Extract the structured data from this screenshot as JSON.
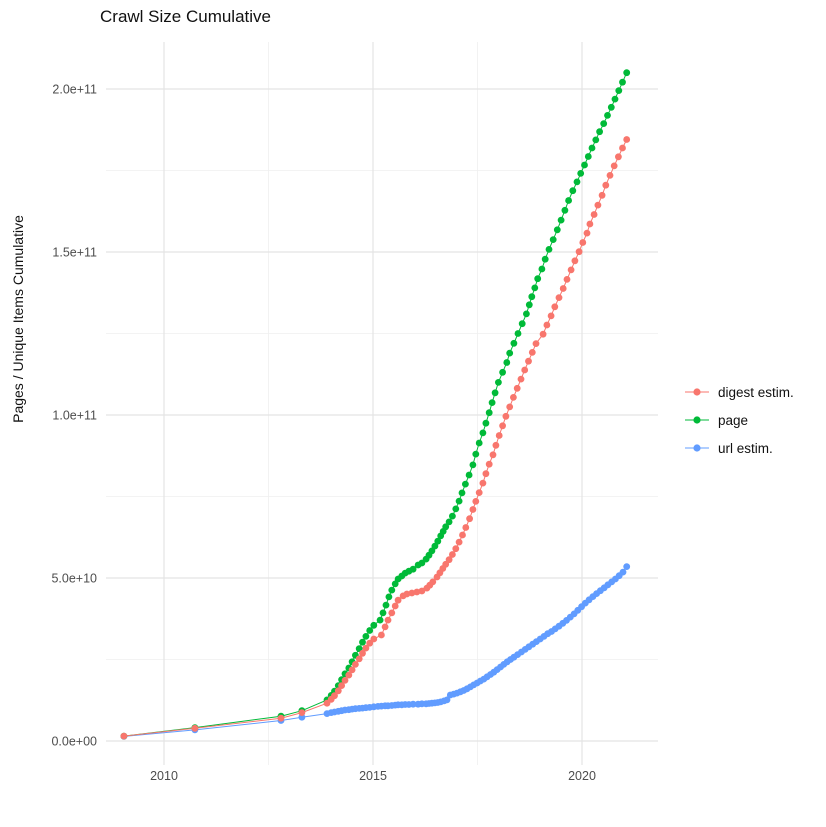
{
  "title": "Crawl Size Cumulative",
  "y_axis": {
    "label": "Pages / Unique Items Cumulative",
    "ticks": [
      "0.0e+00",
      "5.0e+10",
      "1.0e+11",
      "1.5e+11",
      "2.0e+11"
    ],
    "tick_values_e9": [
      0,
      50,
      100,
      150,
      200
    ]
  },
  "x_axis": {
    "ticks": [
      "2010",
      "2015",
      "2020"
    ],
    "tick_years": [
      2010,
      2015,
      2020
    ],
    "minor_years": [
      2012.5,
      2017.5
    ]
  },
  "legend": {
    "items": [
      {
        "label": "digest estim.",
        "color": "#F8766D"
      },
      {
        "label": "page",
        "color": "#00BA38"
      },
      {
        "label": "url estim.",
        "color": "#619CFF"
      }
    ]
  },
  "colors": {
    "grid_major": "#E4E4E4",
    "grid_minor": "#EFEFEF",
    "axis_text": "#4D4D4D",
    "title_text": "#111111"
  },
  "chart_data": {
    "type": "line",
    "marker": "point",
    "title": "Crawl Size Cumulative",
    "xlabel": "",
    "ylabel": "Pages / Unique Items Cumulative",
    "x_unit": "year (decimal)",
    "y_unit": "count",
    "y_scale": 1000000000.0,
    "xlim": [
      2008.6,
      2021.9
    ],
    "ylim_e9": [
      -7,
      215
    ],
    "grid": true,
    "legend_position": "right",
    "series": [
      {
        "name": "digest estim.",
        "color": "#F8766D",
        "points_year_value_e9": [
          [
            2009.04,
            1.5
          ],
          [
            2010.74,
            3.9
          ],
          [
            2012.8,
            7.0
          ],
          [
            2013.3,
            8.7
          ],
          [
            2013.9,
            11.6
          ],
          [
            2014.0,
            12.8
          ],
          [
            2014.08,
            13.9
          ],
          [
            2014.17,
            15.4
          ],
          [
            2014.25,
            17.0
          ],
          [
            2014.33,
            18.6
          ],
          [
            2014.42,
            20.2
          ],
          [
            2014.5,
            21.8
          ],
          [
            2014.58,
            23.5
          ],
          [
            2014.67,
            25.2
          ],
          [
            2014.75,
            26.9
          ],
          [
            2014.83,
            28.5
          ],
          [
            2014.92,
            30.0
          ],
          [
            2015.02,
            31.3
          ],
          [
            2015.2,
            32.5
          ],
          [
            2015.29,
            35.0
          ],
          [
            2015.36,
            37.1
          ],
          [
            2015.45,
            39.3
          ],
          [
            2015.53,
            41.4
          ],
          [
            2015.6,
            43.2
          ],
          [
            2015.72,
            44.5
          ],
          [
            2015.81,
            45.1
          ],
          [
            2015.93,
            45.4
          ],
          [
            2016.05,
            45.7
          ],
          [
            2016.17,
            46.0
          ],
          [
            2016.29,
            46.9
          ],
          [
            2016.36,
            47.8
          ],
          [
            2016.43,
            48.8
          ],
          [
            2016.53,
            50.3
          ],
          [
            2016.6,
            51.6
          ],
          [
            2016.67,
            52.9
          ],
          [
            2016.74,
            54.2
          ],
          [
            2016.82,
            55.6
          ],
          [
            2016.9,
            57.2
          ],
          [
            2016.98,
            59.0
          ],
          [
            2017.06,
            61.0
          ],
          [
            2017.14,
            63.2
          ],
          [
            2017.22,
            65.5
          ],
          [
            2017.31,
            68.2
          ],
          [
            2017.39,
            71.0
          ],
          [
            2017.46,
            73.5
          ],
          [
            2017.54,
            76.2
          ],
          [
            2017.63,
            79.1
          ],
          [
            2017.7,
            82.0
          ],
          [
            2017.78,
            84.9
          ],
          [
            2017.87,
            87.8
          ],
          [
            2017.94,
            90.7
          ],
          [
            2018.02,
            93.7
          ],
          [
            2018.1,
            96.7
          ],
          [
            2018.18,
            99.6
          ],
          [
            2018.27,
            102.5
          ],
          [
            2018.36,
            105.4
          ],
          [
            2018.45,
            108.2
          ],
          [
            2018.54,
            111.0
          ],
          [
            2018.63,
            113.8
          ],
          [
            2018.72,
            116.5
          ],
          [
            2018.81,
            119.2
          ],
          [
            2018.9,
            121.9
          ],
          [
            2019.07,
            124.8
          ],
          [
            2019.16,
            127.6
          ],
          [
            2019.26,
            130.4
          ],
          [
            2019.35,
            133.2
          ],
          [
            2019.45,
            136.0
          ],
          [
            2019.55,
            138.8
          ],
          [
            2019.64,
            141.6
          ],
          [
            2019.74,
            144.5
          ],
          [
            2019.83,
            147.3
          ],
          [
            2019.93,
            150.1
          ],
          [
            2020.02,
            152.9
          ],
          [
            2020.12,
            155.8
          ],
          [
            2020.19,
            158.6
          ],
          [
            2020.29,
            161.5
          ],
          [
            2020.38,
            164.4
          ],
          [
            2020.48,
            167.4
          ],
          [
            2020.57,
            170.5
          ],
          [
            2020.67,
            173.5
          ],
          [
            2020.77,
            176.4
          ],
          [
            2020.87,
            179.2
          ],
          [
            2020.97,
            181.9
          ],
          [
            2021.07,
            184.5
          ]
        ]
      },
      {
        "name": "page",
        "color": "#00BA38",
        "points_year_value_e9": [
          [
            2009.04,
            1.5
          ],
          [
            2010.74,
            4.1
          ],
          [
            2012.8,
            7.6
          ],
          [
            2013.3,
            9.3
          ],
          [
            2013.9,
            12.6
          ],
          [
            2014.0,
            14.0
          ],
          [
            2014.08,
            15.3
          ],
          [
            2014.17,
            17.0
          ],
          [
            2014.25,
            18.8
          ],
          [
            2014.33,
            20.6
          ],
          [
            2014.42,
            22.4
          ],
          [
            2014.5,
            24.3
          ],
          [
            2014.58,
            26.3
          ],
          [
            2014.67,
            28.3
          ],
          [
            2014.75,
            30.3
          ],
          [
            2014.83,
            32.1
          ],
          [
            2014.92,
            33.9
          ],
          [
            2015.02,
            35.5
          ],
          [
            2015.17,
            37.1
          ],
          [
            2015.24,
            39.3
          ],
          [
            2015.31,
            41.7
          ],
          [
            2015.38,
            44.2
          ],
          [
            2015.45,
            46.3
          ],
          [
            2015.53,
            48.2
          ],
          [
            2015.6,
            49.7
          ],
          [
            2015.69,
            50.6
          ],
          [
            2015.77,
            51.5
          ],
          [
            2015.86,
            52.1
          ],
          [
            2015.96,
            52.7
          ],
          [
            2016.08,
            54.0
          ],
          [
            2016.17,
            54.6
          ],
          [
            2016.27,
            55.8
          ],
          [
            2016.34,
            57.0
          ],
          [
            2016.41,
            58.3
          ],
          [
            2016.48,
            59.8
          ],
          [
            2016.55,
            61.3
          ],
          [
            2016.62,
            62.9
          ],
          [
            2016.68,
            64.3
          ],
          [
            2016.74,
            65.7
          ],
          [
            2016.82,
            67.2
          ],
          [
            2016.9,
            69.0
          ],
          [
            2016.98,
            71.2
          ],
          [
            2017.06,
            73.6
          ],
          [
            2017.13,
            76.1
          ],
          [
            2017.21,
            78.8
          ],
          [
            2017.3,
            81.6
          ],
          [
            2017.39,
            84.7
          ],
          [
            2017.46,
            88.0
          ],
          [
            2017.54,
            91.4
          ],
          [
            2017.63,
            94.5
          ],
          [
            2017.7,
            97.5
          ],
          [
            2017.78,
            100.7
          ],
          [
            2017.85,
            103.8
          ],
          [
            2017.92,
            106.8
          ],
          [
            2018.0,
            110.0
          ],
          [
            2018.1,
            113.1
          ],
          [
            2018.2,
            116.1
          ],
          [
            2018.27,
            119.0
          ],
          [
            2018.37,
            122.0
          ],
          [
            2018.47,
            125.0
          ],
          [
            2018.57,
            128.0
          ],
          [
            2018.67,
            131.0
          ],
          [
            2018.74,
            133.8
          ],
          [
            2018.8,
            136.3
          ],
          [
            2018.87,
            139.0
          ],
          [
            2018.94,
            141.8
          ],
          [
            2019.04,
            144.8
          ],
          [
            2019.12,
            147.8
          ],
          [
            2019.21,
            150.8
          ],
          [
            2019.31,
            153.8
          ],
          [
            2019.41,
            156.8
          ],
          [
            2019.5,
            159.8
          ],
          [
            2019.59,
            162.8
          ],
          [
            2019.68,
            165.8
          ],
          [
            2019.78,
            168.8
          ],
          [
            2019.88,
            171.5
          ],
          [
            2019.97,
            174.1
          ],
          [
            2020.06,
            176.7
          ],
          [
            2020.15,
            179.3
          ],
          [
            2020.24,
            181.9
          ],
          [
            2020.33,
            184.4
          ],
          [
            2020.42,
            186.9
          ],
          [
            2020.52,
            189.4
          ],
          [
            2020.61,
            191.9
          ],
          [
            2020.7,
            194.4
          ],
          [
            2020.79,
            196.9
          ],
          [
            2020.88,
            199.5
          ],
          [
            2020.97,
            202.1
          ],
          [
            2021.07,
            205.0
          ]
        ]
      },
      {
        "name": "url estim.",
        "color": "#619CFF",
        "points_year_value_e9": [
          [
            2009.04,
            1.4
          ],
          [
            2010.74,
            3.4
          ],
          [
            2012.8,
            6.3
          ],
          [
            2013.3,
            7.3
          ],
          [
            2013.9,
            8.4
          ],
          [
            2014.0,
            8.7
          ],
          [
            2014.08,
            8.9
          ],
          [
            2014.17,
            9.1
          ],
          [
            2014.25,
            9.3
          ],
          [
            2014.33,
            9.5
          ],
          [
            2014.42,
            9.6
          ],
          [
            2014.5,
            9.8
          ],
          [
            2014.58,
            9.9
          ],
          [
            2014.67,
            10.0
          ],
          [
            2014.75,
            10.1
          ],
          [
            2014.83,
            10.2
          ],
          [
            2014.92,
            10.3
          ],
          [
            2015.02,
            10.5
          ],
          [
            2015.12,
            10.6
          ],
          [
            2015.2,
            10.7
          ],
          [
            2015.29,
            10.8
          ],
          [
            2015.36,
            10.8
          ],
          [
            2015.45,
            10.9
          ],
          [
            2015.53,
            11.0
          ],
          [
            2015.6,
            11.1
          ],
          [
            2015.69,
            11.1
          ],
          [
            2015.77,
            11.2
          ],
          [
            2015.86,
            11.2
          ],
          [
            2015.96,
            11.3
          ],
          [
            2016.08,
            11.3
          ],
          [
            2016.17,
            11.4
          ],
          [
            2016.27,
            11.4
          ],
          [
            2016.34,
            11.5
          ],
          [
            2016.41,
            11.6
          ],
          [
            2016.48,
            11.7
          ],
          [
            2016.55,
            11.8
          ],
          [
            2016.62,
            12.0
          ],
          [
            2016.7,
            12.3
          ],
          [
            2016.77,
            12.6
          ],
          [
            2016.85,
            14.1
          ],
          [
            2016.93,
            14.4
          ],
          [
            2017.01,
            14.7
          ],
          [
            2017.09,
            15.1
          ],
          [
            2017.17,
            15.5
          ],
          [
            2017.25,
            16.0
          ],
          [
            2017.33,
            16.6
          ],
          [
            2017.41,
            17.2
          ],
          [
            2017.49,
            17.8
          ],
          [
            2017.57,
            18.4
          ],
          [
            2017.65,
            19.0
          ],
          [
            2017.73,
            19.7
          ],
          [
            2017.81,
            20.4
          ],
          [
            2017.89,
            21.1
          ],
          [
            2017.97,
            21.9
          ],
          [
            2018.05,
            22.7
          ],
          [
            2018.13,
            23.5
          ],
          [
            2018.21,
            24.3
          ],
          [
            2018.29,
            25.0
          ],
          [
            2018.37,
            25.7
          ],
          [
            2018.46,
            26.5
          ],
          [
            2018.55,
            27.3
          ],
          [
            2018.64,
            28.1
          ],
          [
            2018.73,
            28.9
          ],
          [
            2018.82,
            29.7
          ],
          [
            2018.91,
            30.5
          ],
          [
            2019.0,
            31.3
          ],
          [
            2019.09,
            32.1
          ],
          [
            2019.18,
            32.9
          ],
          [
            2019.27,
            33.6
          ],
          [
            2019.36,
            34.4
          ],
          [
            2019.45,
            35.2
          ],
          [
            2019.54,
            36.1
          ],
          [
            2019.63,
            37.0
          ],
          [
            2019.72,
            38.0
          ],
          [
            2019.81,
            39.0
          ],
          [
            2019.9,
            40.1
          ],
          [
            2019.99,
            41.2
          ],
          [
            2020.08,
            42.3
          ],
          [
            2020.17,
            43.3
          ],
          [
            2020.26,
            44.3
          ],
          [
            2020.35,
            45.2
          ],
          [
            2020.44,
            46.1
          ],
          [
            2020.53,
            47.0
          ],
          [
            2020.62,
            47.9
          ],
          [
            2020.71,
            48.8
          ],
          [
            2020.8,
            49.7
          ],
          [
            2020.89,
            50.7
          ],
          [
            2020.98,
            51.8
          ],
          [
            2021.07,
            53.5
          ]
        ]
      }
    ]
  }
}
